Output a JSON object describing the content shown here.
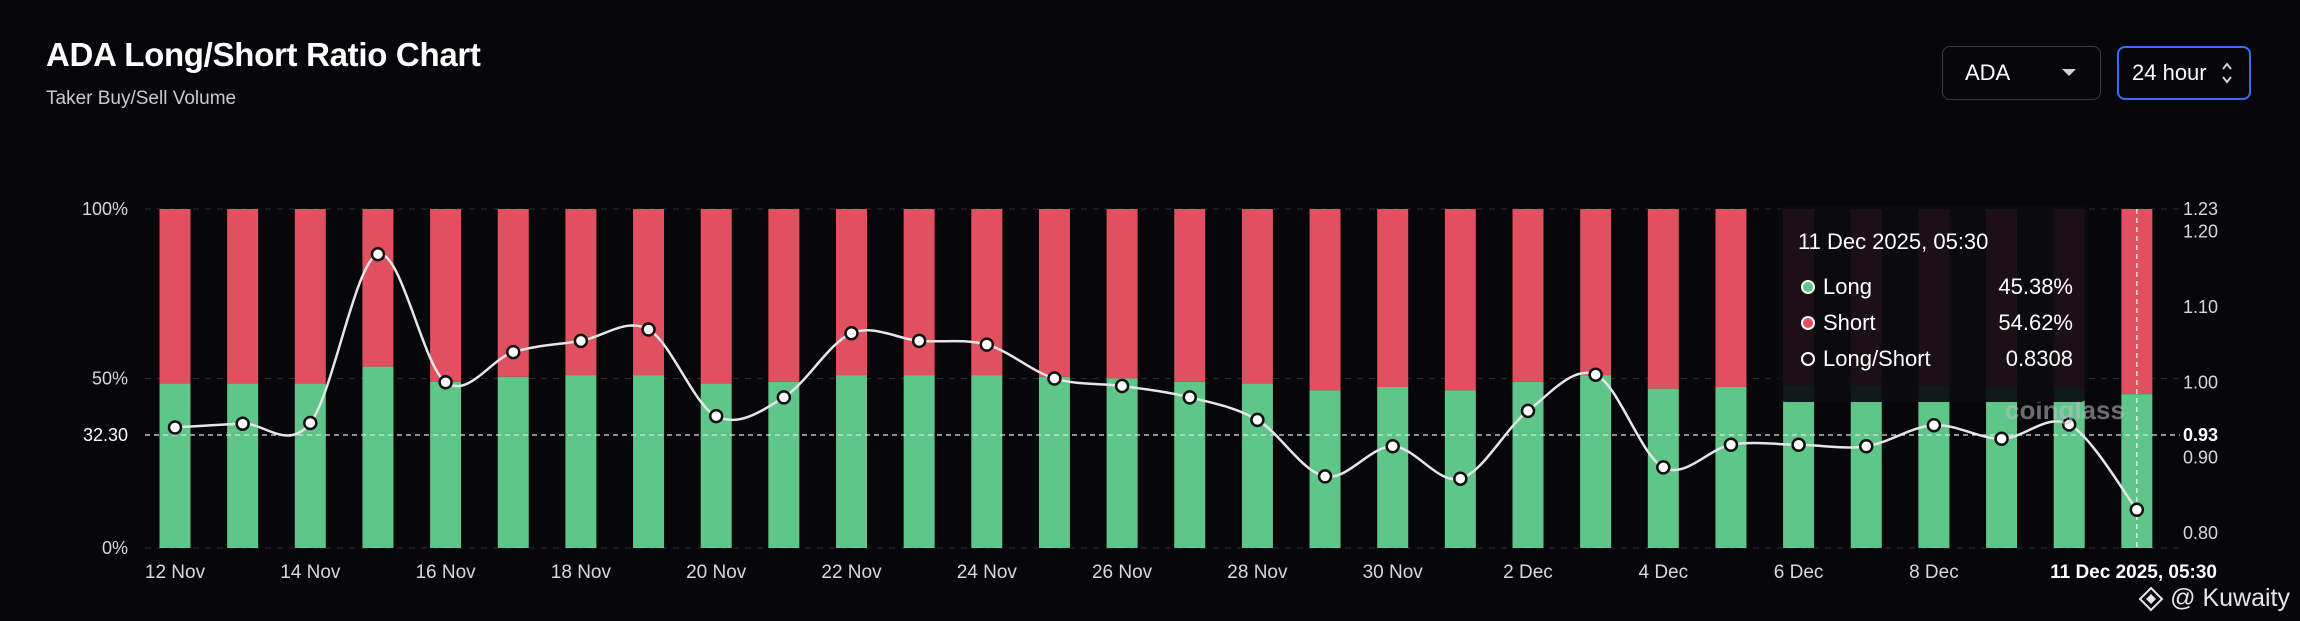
{
  "header": {
    "title": "ADA Long/Short Ratio Chart",
    "subtitle": "Taker Buy/Sell Volume"
  },
  "controls": {
    "asset": "ADA",
    "interval": "24 hour"
  },
  "watermark": "coinglass",
  "credit": "@ Kuwaity",
  "colors": {
    "long": "#5fc68a",
    "short": "#e0505f",
    "ratio_line": "#e6e6e6",
    "background": "#07070b",
    "accent": "#3b6cf5"
  },
  "icons": {
    "asset_dropdown": "chevron-down-icon",
    "interval_dropdown": "up-down-chevron-icon",
    "credit": "diamond-logo-icon"
  },
  "tooltip": {
    "date": "11 Dec 2025, 05:30",
    "rows": [
      {
        "label": "Long",
        "value": "45.38%"
      },
      {
        "label": "Short",
        "value": "54.62%"
      },
      {
        "label": "Long/Short",
        "value": "0.8308"
      }
    ]
  },
  "crosshair": {
    "left_label": "32.30",
    "right_label": "0.93",
    "x_label": "11 Dec 2025, 05:30"
  },
  "chart_data": {
    "type": "bar",
    "stacked_percent": true,
    "x": [
      "12 Nov",
      "13 Nov",
      "14 Nov",
      "15 Nov",
      "16 Nov",
      "17 Nov",
      "18 Nov",
      "19 Nov",
      "20 Nov",
      "21 Nov",
      "22 Nov",
      "23 Nov",
      "24 Nov",
      "25 Nov",
      "26 Nov",
      "27 Nov",
      "28 Nov",
      "29 Nov",
      "30 Nov",
      "1 Dec",
      "2 Dec",
      "3 Dec",
      "4 Dec",
      "5 Dec",
      "6 Dec",
      "7 Dec",
      "8 Dec",
      "9 Dec",
      "10 Dec",
      "11 Dec"
    ],
    "x_tick_labels": [
      "12 Nov",
      "14 Nov",
      "16 Nov",
      "18 Nov",
      "20 Nov",
      "22 Nov",
      "24 Nov",
      "26 Nov",
      "28 Nov",
      "30 Nov",
      "2 Dec",
      "4 Dec",
      "6 Dec",
      "8 Dec"
    ],
    "series": [
      {
        "name": "Long",
        "axis": "left",
        "values": [
          48.5,
          48.5,
          48.5,
          53.5,
          49.0,
          50.5,
          51.0,
          51.0,
          48.5,
          49.0,
          51.0,
          51.0,
          51.0,
          50.5,
          50.0,
          49.0,
          48.5,
          46.5,
          47.5,
          46.5,
          49.0,
          51.0,
          47.0,
          47.5,
          48.0,
          48.0,
          48.0,
          47.5,
          47.5,
          45.38
        ]
      },
      {
        "name": "Short",
        "axis": "left",
        "values": [
          51.5,
          51.5,
          51.5,
          46.5,
          51.0,
          49.5,
          49.0,
          49.0,
          51.5,
          51.0,
          49.0,
          49.0,
          49.0,
          49.5,
          50.0,
          51.0,
          51.5,
          53.5,
          52.5,
          53.5,
          51.0,
          49.0,
          53.0,
          52.5,
          52.0,
          52.0,
          52.0,
          52.5,
          52.5,
          54.62
        ]
      },
      {
        "name": "Long/Short",
        "axis": "right",
        "type": "line",
        "values": [
          0.94,
          0.945,
          0.946,
          1.17,
          1.0,
          1.04,
          1.055,
          1.07,
          0.955,
          0.98,
          1.065,
          1.055,
          1.05,
          1.005,
          0.995,
          0.98,
          0.95,
          0.875,
          0.915,
          0.872,
          0.962,
          1.01,
          0.887,
          0.917,
          0.917,
          0.915,
          0.943,
          0.925,
          0.944,
          0.8308
        ]
      }
    ],
    "y_left": {
      "ticks": [
        "0%",
        "50%",
        "100%"
      ],
      "range": [
        0,
        100
      ]
    },
    "y_right": {
      "ticks": [
        "0.80",
        "0.90",
        "1.00",
        "1.10",
        "1.20",
        "1.23"
      ],
      "range": [
        0.78,
        1.23
      ]
    },
    "grid": true,
    "legend": "none"
  }
}
